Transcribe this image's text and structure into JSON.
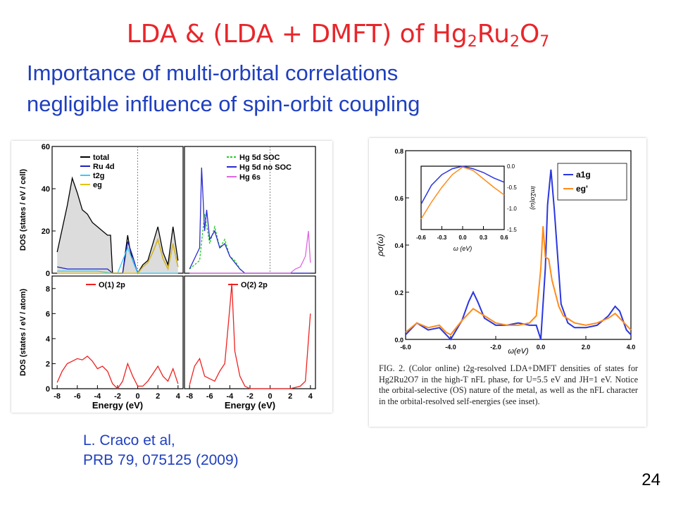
{
  "slide": {
    "title_main": "LDA & (LDA + DMFT) of Hg",
    "title_sub1": "2",
    "title_mid": "Ru",
    "title_sub2": "2",
    "title_o": "O",
    "title_sub3": "7",
    "subtitle_line1": "Importance of multi-orbital correlations",
    "subtitle_line2": "negligible influence of  spin-orbit coupling",
    "credit_line1": "L. Craco et al,",
    "credit_line2": "PRB 79, 075125 (2009)",
    "page_number": "24"
  },
  "colors": {
    "title": "#e8262b",
    "subtitle": "#1f3fbf",
    "total": "#000000",
    "ru4d": "#1f1fbf",
    "t2g": "#33ccff",
    "eg": "#e6c200",
    "hg5d_soc": "#22cc22",
    "hg5d_nosoc": "#2a2ad4",
    "hg6s": "#e066e0",
    "o2p": "#ee2222",
    "a1g": "#2a36e0",
    "egpi": "#ff8c1a",
    "fill": "#dcdcdc"
  },
  "chart_data": [
    {
      "type": "line",
      "panel": "left-top-left",
      "ylabel": "DOS (states / eV / cell)",
      "xlim": [
        -8.5,
        4.5
      ],
      "ylim": [
        0,
        60
      ],
      "yticks": [
        "0",
        "20",
        "40",
        "60"
      ],
      "fermi_level": 0,
      "series": [
        {
          "name": "total",
          "x": [
            -8,
            -7,
            -6.5,
            -6,
            -5.5,
            -5,
            -4.5,
            -4,
            -3.5,
            -3,
            -2.7,
            -2.5,
            -2,
            -1.5,
            -1,
            -0.8,
            -0.5,
            0,
            0.5,
            1,
            1.5,
            2,
            2.5,
            3,
            3.5,
            4
          ],
          "y": [
            10,
            32,
            45,
            38,
            30,
            28,
            24,
            22,
            20,
            18,
            18,
            0,
            0,
            0,
            18,
            12,
            6,
            0,
            4,
            6,
            14,
            22,
            10,
            4,
            22,
            6
          ]
        },
        {
          "name": "Ru 4d",
          "x": [
            -8,
            -7,
            -6,
            -5,
            -4,
            -3,
            -2.5,
            -2,
            -1.5,
            -1,
            -0.5,
            0,
            0.5,
            1,
            1.5,
            2,
            2.5,
            3,
            3.5,
            4
          ],
          "y": [
            3,
            2,
            2,
            2,
            2,
            2,
            0,
            0,
            0,
            15,
            8,
            0,
            3,
            5,
            10,
            16,
            7,
            2,
            14,
            3
          ]
        },
        {
          "name": "t2g",
          "x": [
            -8,
            -6,
            -4,
            -2.5,
            -2,
            -1,
            -0.5,
            0,
            0.5,
            1,
            1.5,
            2,
            2.5,
            3,
            3.5,
            4
          ],
          "y": [
            1,
            1,
            1,
            0,
            0,
            12,
            6,
            0,
            0,
            0,
            0,
            0,
            0,
            0,
            0,
            0
          ]
        },
        {
          "name": "eg",
          "x": [
            -8,
            -4,
            -2,
            0,
            0.5,
            1,
            1.5,
            2,
            2.5,
            3,
            3.5,
            4
          ],
          "y": [
            0,
            0,
            0,
            0,
            3,
            5,
            10,
            16,
            7,
            2,
            14,
            3
          ]
        }
      ]
    },
    {
      "type": "line",
      "panel": "left-top-right",
      "xlim": [
        -8.5,
        4.5
      ],
      "ylim": [
        0,
        60
      ],
      "fermi_level": 0,
      "series": [
        {
          "name": "Hg 5d SOC",
          "x": [
            -8,
            -7,
            -6.5,
            -6,
            -5.5,
            -5,
            -4.5,
            -4,
            -3.5,
            -3,
            -2.5
          ],
          "y": [
            2,
            6,
            28,
            14,
            22,
            12,
            16,
            8,
            6,
            2,
            0
          ]
        },
        {
          "name": "Hg 5d no SOC",
          "x": [
            -8,
            -7,
            -6.8,
            -6.5,
            -6.3,
            -6,
            -5.5,
            -5,
            -4.5,
            -4,
            -3.5,
            -3,
            -2.5,
            0,
            2,
            3,
            4
          ],
          "y": [
            2,
            12,
            50,
            20,
            30,
            16,
            20,
            12,
            14,
            8,
            5,
            2,
            0,
            0,
            0,
            0,
            0
          ]
        },
        {
          "name": "Hg 6s",
          "x": [
            -8,
            -3,
            0,
            2,
            2.5,
            3,
            3.5,
            3.8,
            4
          ],
          "y": [
            0,
            0,
            0,
            0,
            2,
            3,
            8,
            20,
            5
          ]
        }
      ]
    },
    {
      "type": "line",
      "panel": "left-bottom-left",
      "ylabel": "DOS (states / eV / atom)",
      "xlabel": "Energy (eV)",
      "xlim": [
        -8.5,
        4.5
      ],
      "ylim": [
        0,
        9
      ],
      "yticks": [
        "0",
        "2",
        "4",
        "6",
        "8"
      ],
      "xticks": [
        "-8",
        "-6",
        "-4",
        "-2",
        "0",
        "2",
        "4"
      ],
      "series": [
        {
          "name": "O(1) 2p",
          "x": [
            -8,
            -7.5,
            -7,
            -6.5,
            -6,
            -5.5,
            -5,
            -4.5,
            -4,
            -3.5,
            -3,
            -2.5,
            -2,
            -1.5,
            -1,
            -0.5,
            0,
            0.5,
            1,
            1.5,
            2,
            2.5,
            3,
            3.5,
            4
          ],
          "y": [
            0.5,
            1.4,
            2.0,
            2.2,
            2.4,
            2.3,
            2.6,
            2.2,
            1.6,
            1.8,
            1.4,
            0.4,
            0.0,
            0.6,
            2.0,
            1.0,
            0.2,
            0.2,
            0.6,
            1.2,
            1.8,
            1.0,
            0.6,
            1.6,
            0.4
          ]
        }
      ]
    },
    {
      "type": "line",
      "panel": "left-bottom-right",
      "xlabel": "Energy (eV)",
      "xlim": [
        -8.5,
        4.5
      ],
      "ylim": [
        0,
        9
      ],
      "xticks": [
        "-8",
        "-6",
        "-4",
        "-2",
        "0",
        "2",
        "4"
      ],
      "series": [
        {
          "name": "O(2) 2p",
          "x": [
            -8,
            -7.5,
            -7,
            -6.5,
            -6,
            -5.5,
            -5,
            -4.5,
            -4,
            -3.8,
            -3.5,
            -3,
            -2.5,
            -2,
            -1.5,
            -1,
            0,
            1,
            2,
            3,
            3.5,
            4
          ],
          "y": [
            0.3,
            1.8,
            2.4,
            1.0,
            0.8,
            0.6,
            1.4,
            2.0,
            6.5,
            8.4,
            3.0,
            1.0,
            0.2,
            0.0,
            0.0,
            0.0,
            0.0,
            0.0,
            0.0,
            0.2,
            0.6,
            6.0
          ]
        }
      ]
    },
    {
      "type": "line",
      "panel": "right-main",
      "ylabel": "ρσ(ω)",
      "xlabel": "ω(eV)",
      "xlim": [
        -6.0,
        4.0
      ],
      "ylim": [
        0,
        0.8
      ],
      "xticks": [
        "-6.0",
        "-4.0",
        "-2.0",
        "0.0",
        "2.0",
        "4.0"
      ],
      "yticks": [
        "0.0",
        "0.2",
        "0.4",
        "0.6",
        "0.8"
      ],
      "series": [
        {
          "name": "a1g",
          "x": [
            -6.0,
            -5.5,
            -5.0,
            -4.5,
            -4.2,
            -4.0,
            -3.5,
            -3.2,
            -3.0,
            -2.8,
            -2.5,
            -2.0,
            -1.5,
            -1.0,
            -0.5,
            -0.2,
            0.0,
            0.2,
            0.3,
            0.45,
            0.6,
            0.9,
            1.2,
            1.5,
            2.0,
            2.5,
            3.0,
            3.3,
            3.5,
            3.8,
            4.0
          ],
          "y": [
            0.02,
            0.07,
            0.04,
            0.05,
            0.02,
            0.0,
            0.08,
            0.16,
            0.2,
            0.16,
            0.09,
            0.06,
            0.06,
            0.07,
            0.06,
            0.06,
            0.0,
            0.3,
            0.57,
            0.72,
            0.55,
            0.15,
            0.07,
            0.05,
            0.05,
            0.06,
            0.1,
            0.14,
            0.12,
            0.04,
            0.02
          ]
        },
        {
          "name": "eg'",
          "x": [
            -6.0,
            -5.5,
            -5.0,
            -4.5,
            -4.2,
            -4.0,
            -3.5,
            -3.0,
            -2.5,
            -2.0,
            -1.5,
            -1.0,
            -0.5,
            -0.2,
            0.0,
            0.1,
            0.2,
            0.35,
            0.5,
            0.8,
            1.0,
            1.5,
            2.0,
            2.5,
            3.0,
            3.3,
            3.6,
            4.0
          ],
          "y": [
            0.03,
            0.07,
            0.05,
            0.06,
            0.03,
            0.02,
            0.08,
            0.13,
            0.1,
            0.07,
            0.06,
            0.06,
            0.07,
            0.1,
            0.3,
            0.48,
            0.35,
            0.34,
            0.25,
            0.14,
            0.1,
            0.07,
            0.06,
            0.07,
            0.09,
            0.11,
            0.08,
            0.04
          ]
        }
      ],
      "legend": "top-right"
    },
    {
      "type": "line",
      "panel": "right-inset",
      "ylabel": "ImΣσ(ω)",
      "xlabel": "ω (eV)",
      "xlim": [
        -0.6,
        0.6
      ],
      "ylim": [
        -1.5,
        0.0
      ],
      "xticks": [
        "-0.6",
        "-0.3",
        "0.0",
        "0.3",
        "0.6"
      ],
      "yticks": [
        "0.0",
        "-0.5",
        "-1.0",
        "-1.5"
      ],
      "series": [
        {
          "name": "a1g",
          "x": [
            -0.6,
            -0.45,
            -0.3,
            -0.15,
            0.0,
            0.15,
            0.3,
            0.45,
            0.6
          ],
          "y": [
            -0.9,
            -0.45,
            -0.2,
            -0.06,
            0.0,
            -0.06,
            -0.15,
            -0.28,
            -0.38
          ]
        },
        {
          "name": "eg'",
          "x": [
            -0.6,
            -0.45,
            -0.3,
            -0.15,
            0.0,
            0.15,
            0.3,
            0.45,
            0.6
          ],
          "y": [
            -1.25,
            -0.85,
            -0.5,
            -0.2,
            -0.02,
            -0.1,
            -0.3,
            -0.5,
            -0.68
          ]
        }
      ]
    }
  ],
  "legends": {
    "tl": [
      "total",
      "Ru 4d",
      "t2g",
      "eg"
    ],
    "tr": [
      "Hg 5d SOC",
      "Hg 5d no SOC",
      "Hg 6s"
    ],
    "bl": [
      "O(1) 2p"
    ],
    "br": [
      "O(2) 2p"
    ],
    "right": [
      "a1g",
      "eg'"
    ]
  },
  "caption": {
    "text": "FIG. 2. (Color online) t2g-resolved LDA+DMFT densities of states for Hg2Ru2O7 in the high-T nFL phase, for U=5.5 eV and JH=1 eV. Notice the orbital-selective (OS) nature of the metal, as well as the nFL character in the orbital-resolved self-energies (see inset)."
  }
}
